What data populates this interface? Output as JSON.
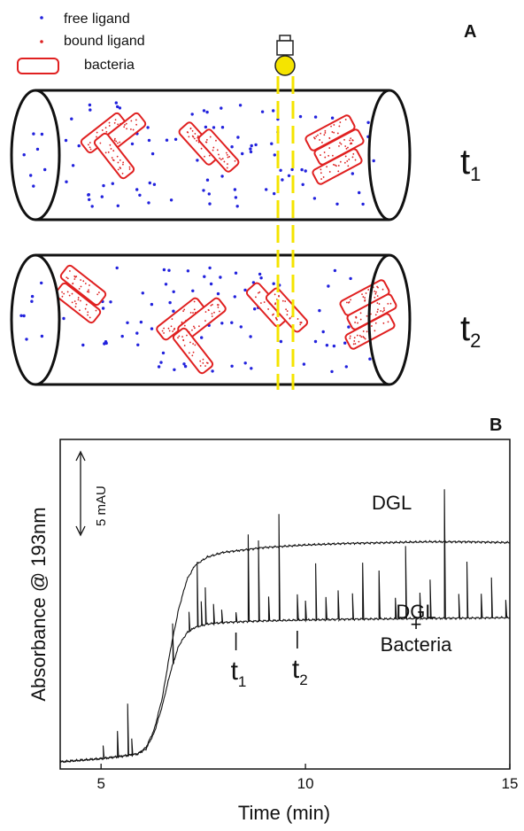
{
  "panel_a": {
    "letter": "A",
    "legend": {
      "free_ligand": "free ligand",
      "bound_ligand": "bound ligand",
      "bacteria": "bacteria"
    },
    "time_labels": [
      {
        "main": "t",
        "sub": "1"
      },
      {
        "main": "t",
        "sub": "2"
      }
    ],
    "colors": {
      "free_ligand": "#2222dd",
      "bound_ligand": "#dd2222",
      "bacteria_outline": "#e02020",
      "detector": "#f5e400",
      "detection_window": "#f5e400"
    },
    "icons": [
      "detector-lamp-icon",
      "capillary-tube-icon",
      "bacteria-cluster-icon"
    ]
  },
  "chart_data": {
    "type": "line",
    "panel_letter": "B",
    "title": "",
    "xlabel": "Time (min)",
    "ylabel": "Absorbance @ 193nm",
    "xlim": [
      4,
      15
    ],
    "x_ticks": [
      5,
      10,
      15
    ],
    "y_scale_bar": "5 mAU",
    "grid": false,
    "series": [
      {
        "name": "DGL",
        "label": "DGL",
        "x": [
          4.0,
          5.0,
          5.5,
          5.9,
          6.1,
          6.3,
          6.5,
          6.7,
          6.9,
          7.1,
          7.3,
          7.6,
          8.0,
          8.5,
          9.0,
          10.0,
          11.0,
          12.0,
          13.0,
          14.0,
          15.0
        ],
        "y": [
          0.0,
          0.2,
          0.35,
          0.5,
          0.9,
          2.0,
          4.0,
          7.0,
          9.5,
          11.3,
          12.2,
          12.7,
          13.0,
          13.15,
          13.3,
          13.45,
          13.55,
          13.6,
          13.65,
          13.65,
          13.6
        ]
      },
      {
        "name": "DGL + Bacteria",
        "label_lines": [
          "DGL",
          "+",
          "Bacteria"
        ],
        "x": [
          4.0,
          5.0,
          5.5,
          5.9,
          6.1,
          6.3,
          6.5,
          6.7,
          6.9,
          7.1,
          7.3,
          7.6,
          8.0,
          9.0,
          10.0,
          11.0,
          12.0,
          13.0,
          14.0,
          15.0
        ],
        "y": [
          0.0,
          0.2,
          0.35,
          0.5,
          0.8,
          1.8,
          3.5,
          5.6,
          7.2,
          8.0,
          8.35,
          8.55,
          8.65,
          8.75,
          8.8,
          8.85,
          8.87,
          8.9,
          8.92,
          8.95
        ],
        "spikes": [
          {
            "x": 5.05,
            "h": 0.8
          },
          {
            "x": 5.4,
            "h": 1.6
          },
          {
            "x": 5.65,
            "h": 3.2
          },
          {
            "x": 5.75,
            "h": 1.0
          },
          {
            "x": 6.75,
            "h": 2.5
          },
          {
            "x": 7.15,
            "h": 1.2
          },
          {
            "x": 7.35,
            "h": 4.0
          },
          {
            "x": 7.45,
            "h": 1.5
          },
          {
            "x": 7.55,
            "h": 2.3
          },
          {
            "x": 7.75,
            "h": 1.2
          },
          {
            "x": 7.95,
            "h": 0.8
          },
          {
            "x": 8.3,
            "h": 0.6
          },
          {
            "x": 8.6,
            "h": 5.4
          },
          {
            "x": 8.85,
            "h": 5.0
          },
          {
            "x": 9.1,
            "h": 1.5
          },
          {
            "x": 9.35,
            "h": 6.6
          },
          {
            "x": 9.8,
            "h": 1.6
          },
          {
            "x": 10.0,
            "h": 1.2
          },
          {
            "x": 10.25,
            "h": 3.5
          },
          {
            "x": 10.5,
            "h": 1.4
          },
          {
            "x": 10.8,
            "h": 1.8
          },
          {
            "x": 11.15,
            "h": 1.6
          },
          {
            "x": 11.4,
            "h": 3.5
          },
          {
            "x": 11.8,
            "h": 3.0
          },
          {
            "x": 12.2,
            "h": 1.3
          },
          {
            "x": 12.45,
            "h": 4.5
          },
          {
            "x": 12.8,
            "h": 1.6
          },
          {
            "x": 13.05,
            "h": 2.4
          },
          {
            "x": 13.4,
            "h": 8.0
          },
          {
            "x": 13.75,
            "h": 1.5
          },
          {
            "x": 13.95,
            "h": 3.5
          },
          {
            "x": 14.3,
            "h": 1.5
          },
          {
            "x": 14.55,
            "h": 2.5
          },
          {
            "x": 14.9,
            "h": 1.1
          }
        ]
      }
    ],
    "markers": [
      {
        "main": "t",
        "sub": "1",
        "x": 8.3
      },
      {
        "main": "t",
        "sub": "2",
        "x": 9.8
      }
    ]
  }
}
